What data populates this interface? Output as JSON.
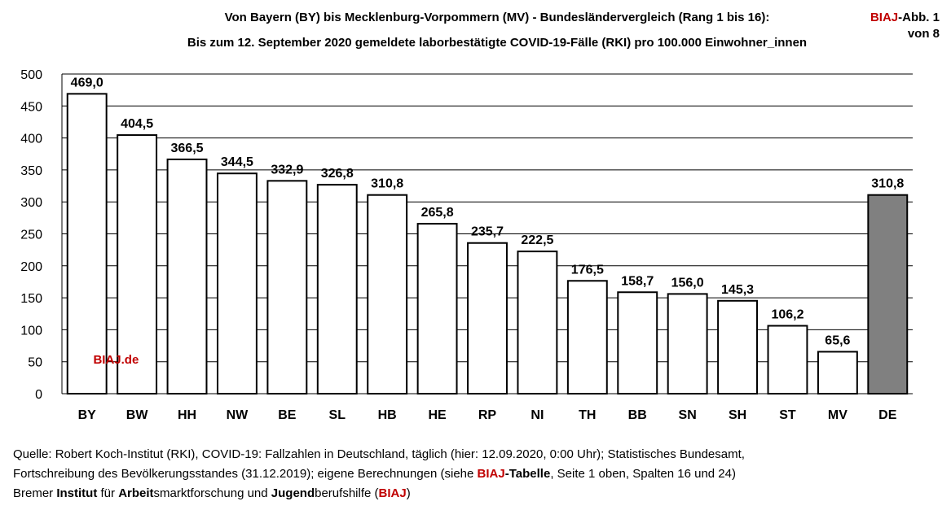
{
  "header": {
    "title_line1": "Von Bayern (BY) bis Mecklenburg-Vorpommern (MV)  - Bundesländervergleich (Rang 1 bis 16):",
    "title_line2": "Bis zum 12. September 2020 gemeldete laborbestätigte COVID-19-Fälle (RKI) pro 100.000 Einwohner_innen",
    "badge_brand": "BIAJ",
    "badge_suffix": "-Abb. 1",
    "badge_line2": "von 8"
  },
  "chart_data": {
    "type": "bar",
    "title": "Bis zum 12. September 2020 gemeldete laborbestätigte COVID-19-Fälle (RKI) pro 100.000 Einwohner_innen",
    "categories": [
      "BY",
      "BW",
      "HH",
      "NW",
      "BE",
      "SL",
      "HB",
      "HE",
      "RP",
      "NI",
      "TH",
      "BB",
      "SN",
      "SH",
      "ST",
      "MV",
      "DE"
    ],
    "values": [
      469.0,
      404.5,
      366.5,
      344.5,
      332.9,
      326.8,
      310.8,
      265.8,
      235.7,
      222.5,
      176.5,
      158.7,
      156.0,
      145.3,
      106.2,
      65.6,
      310.8
    ],
    "labels": [
      "469,0",
      "404,5",
      "366,5",
      "344,5",
      "332,9",
      "326,8",
      "310,8",
      "265,8",
      "235,7",
      "222,5",
      "176,5",
      "158,7",
      "156,0",
      "145,3",
      "106,2",
      "65,6",
      "310,8"
    ],
    "highlight": [
      "DE"
    ],
    "yticks": [
      0,
      50,
      100,
      150,
      200,
      250,
      300,
      350,
      400,
      450,
      500
    ],
    "ylim": [
      0,
      500
    ],
    "grid": true,
    "watermark": "BIAJ.de",
    "colors": {
      "bar": "#ffffff",
      "highlight_bar": "#808080",
      "watermark": "#c00000"
    }
  },
  "footer": {
    "l1": "Quelle: Robert Koch-Institut (RKI), COVID-19: Fallzahlen in Deutschland, täglich (hier: 12.09.2020, 0:00 Uhr); Statistisches Bundesamt,",
    "l2a": "Fortschreibung des Bevölkerungsstandes (31.12.2019); eigene Berechnungen (siehe ",
    "l2b": "BIAJ",
    "l2c": "-Tabelle",
    "l2d": ", Seite 1 oben, Spalten 16 und 24)",
    "l3a": "Bremer ",
    "l3b": "Institut",
    "l3c": " für ",
    "l3d": "Arbeit",
    "l3e": "smarktforschung und ",
    "l3f": "Jugend",
    "l3g": "berufshilfe (",
    "l3h": "BIAJ",
    "l3i": ")"
  }
}
